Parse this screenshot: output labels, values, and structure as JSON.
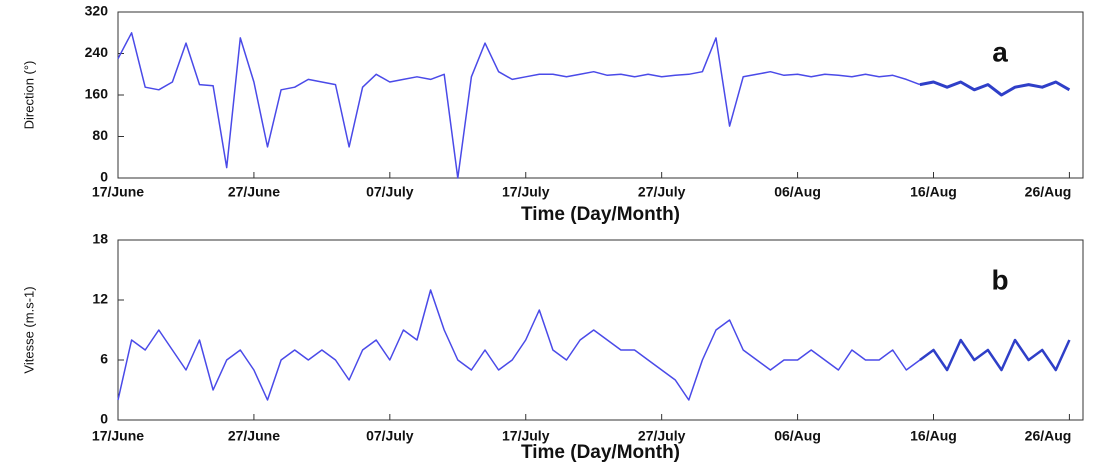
{
  "chart_data": [
    {
      "type": "line",
      "xlabel": "Time (Day/Month)",
      "ylabel": "Direction (°)",
      "annotation": "a",
      "x": [
        0,
        1,
        2,
        3,
        4,
        5,
        6,
        7,
        8,
        9,
        10,
        11,
        12,
        13,
        14,
        15,
        16,
        17,
        18,
        19,
        20,
        21,
        22,
        23,
        24,
        25,
        26,
        27,
        28,
        29,
        30,
        31,
        32,
        33,
        34,
        35,
        36,
        37,
        38,
        39,
        40,
        41,
        42,
        43,
        44,
        45,
        46,
        47,
        48,
        49,
        50,
        51,
        52,
        53,
        54,
        55,
        56,
        57,
        58,
        59,
        60,
        61,
        62,
        63,
        64,
        65,
        66,
        67,
        68,
        69,
        70
      ],
      "xlim": [
        0,
        71
      ],
      "xticks": [
        {
          "value": 0,
          "label": "17/June"
        },
        {
          "value": 10,
          "label": "27/June"
        },
        {
          "value": 20,
          "label": "07/July"
        },
        {
          "value": 30,
          "label": "17/July"
        },
        {
          "value": 40,
          "label": "27/July"
        },
        {
          "value": 50,
          "label": "06/Aug"
        },
        {
          "value": 60,
          "label": "16/Aug"
        },
        {
          "value": 70,
          "label": "26/Aug"
        }
      ],
      "ylim": [
        0,
        320
      ],
      "yticks": [
        0,
        80,
        160,
        240,
        320
      ],
      "series": [
        {
          "color": "#4a4ae8",
          "width": 1.5,
          "values": [
            230,
            280,
            175,
            170,
            185,
            260,
            180,
            178,
            20,
            270,
            185,
            60,
            170,
            175,
            190,
            185,
            180,
            60,
            175,
            200,
            185,
            190,
            195,
            190,
            200,
            0,
            195,
            260,
            205,
            190,
            195,
            200,
            200,
            195,
            200,
            205,
            198,
            200,
            195,
            200,
            195,
            198,
            200,
            205,
            270,
            100,
            195,
            200,
            205,
            198,
            200,
            195,
            200,
            198,
            195,
            200,
            195,
            198,
            190,
            180,
            null,
            null,
            null,
            null,
            null,
            null,
            null,
            null,
            null,
            null,
            null
          ]
        },
        {
          "color": "#2f3fc8",
          "width": 3,
          "values": [
            null,
            null,
            null,
            null,
            null,
            null,
            null,
            null,
            null,
            null,
            null,
            null,
            null,
            null,
            null,
            null,
            null,
            null,
            null,
            null,
            null,
            null,
            null,
            null,
            null,
            null,
            null,
            null,
            null,
            null,
            null,
            null,
            null,
            null,
            null,
            null,
            null,
            null,
            null,
            null,
            null,
            null,
            null,
            null,
            null,
            null,
            null,
            null,
            null,
            null,
            null,
            null,
            null,
            null,
            null,
            null,
            null,
            null,
            null,
            180,
            185,
            175,
            185,
            170,
            180,
            160,
            175,
            180,
            175,
            185,
            170
          ]
        }
      ]
    },
    {
      "type": "line",
      "xlabel": "Time (Day/Month)",
      "ylabel": "Vitesse (m.s-1)",
      "annotation": "b",
      "x": [
        0,
        1,
        2,
        3,
        4,
        5,
        6,
        7,
        8,
        9,
        10,
        11,
        12,
        13,
        14,
        15,
        16,
        17,
        18,
        19,
        20,
        21,
        22,
        23,
        24,
        25,
        26,
        27,
        28,
        29,
        30,
        31,
        32,
        33,
        34,
        35,
        36,
        37,
        38,
        39,
        40,
        41,
        42,
        43,
        44,
        45,
        46,
        47,
        48,
        49,
        50,
        51,
        52,
        53,
        54,
        55,
        56,
        57,
        58,
        59,
        60,
        61,
        62,
        63,
        64,
        65,
        66,
        67,
        68,
        69,
        70
      ],
      "xlim": [
        0,
        71
      ],
      "xticks": [
        {
          "value": 0,
          "label": "17/June"
        },
        {
          "value": 10,
          "label": "27/June"
        },
        {
          "value": 20,
          "label": "07/July"
        },
        {
          "value": 30,
          "label": "17/July"
        },
        {
          "value": 40,
          "label": "27/July"
        },
        {
          "value": 50,
          "label": "06/Aug"
        },
        {
          "value": 60,
          "label": "16/Aug"
        },
        {
          "value": 70,
          "label": "26/Aug"
        }
      ],
      "ylim": [
        0,
        18
      ],
      "yticks": [
        0,
        6,
        12,
        18
      ],
      "series": [
        {
          "color": "#4a4ae8",
          "width": 1.5,
          "values": [
            2,
            8,
            7,
            9,
            7,
            5,
            8,
            3,
            6,
            7,
            5,
            2,
            6,
            7,
            6,
            7,
            6,
            4,
            7,
            8,
            6,
            9,
            8,
            13,
            9,
            6,
            5,
            7,
            5,
            6,
            8,
            11,
            7,
            6,
            8,
            9,
            8,
            7,
            7,
            6,
            5,
            4,
            2,
            6,
            9,
            10,
            7,
            6,
            5,
            6,
            6,
            7,
            6,
            5,
            7,
            6,
            6,
            7,
            5,
            6,
            null,
            null,
            null,
            null,
            null,
            null,
            null,
            null,
            null,
            null,
            null
          ]
        },
        {
          "color": "#2f3fc8",
          "width": 2.5,
          "values": [
            null,
            null,
            null,
            null,
            null,
            null,
            null,
            null,
            null,
            null,
            null,
            null,
            null,
            null,
            null,
            null,
            null,
            null,
            null,
            null,
            null,
            null,
            null,
            null,
            null,
            null,
            null,
            null,
            null,
            null,
            null,
            null,
            null,
            null,
            null,
            null,
            null,
            null,
            null,
            null,
            null,
            null,
            null,
            null,
            null,
            null,
            null,
            null,
            null,
            null,
            null,
            null,
            null,
            null,
            null,
            null,
            null,
            null,
            null,
            6,
            7,
            5,
            8,
            6,
            7,
            5,
            8,
            6,
            7,
            5,
            8
          ]
        }
      ]
    }
  ]
}
